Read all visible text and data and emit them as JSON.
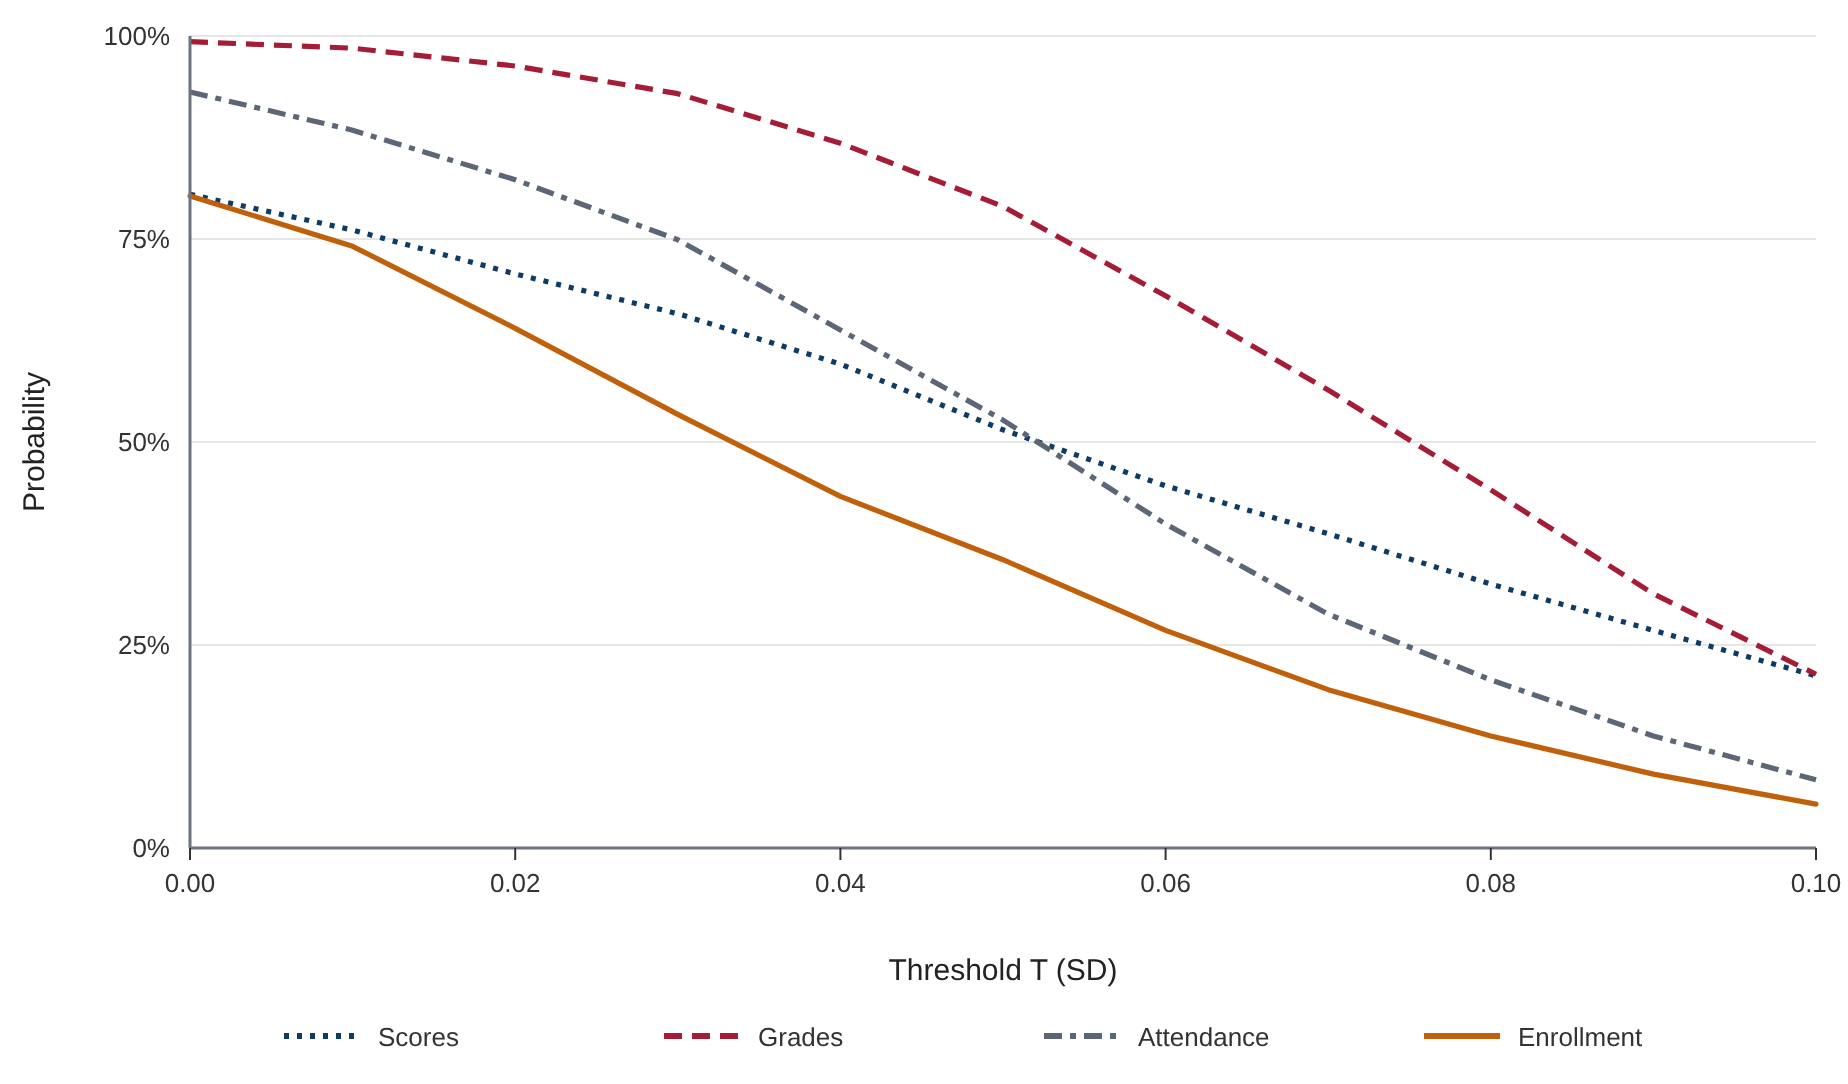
{
  "chart_data": {
    "type": "line",
    "xlabel": "Threshold T (SD)",
    "ylabel": "Probability",
    "x": [
      0,
      0.01,
      0.02,
      0.03,
      0.04,
      0.05,
      0.06,
      0.07,
      0.08,
      0.09,
      0.1
    ],
    "series": [
      {
        "name": "Scores",
        "color": "#0d3b66",
        "line_style": "dotted",
        "values": [
          80.5,
          76.1,
          70.7,
          65.8,
          59.6,
          51.5,
          44.6,
          38.7,
          32.5,
          26.8,
          21.2
        ]
      },
      {
        "name": "Grades",
        "color": "#a51c36",
        "line_style": "dashed",
        "values": [
          99.3,
          98.5,
          96.3,
          92.9,
          86.8,
          79,
          68,
          56.4,
          44.1,
          31.3,
          21.4
        ]
      },
      {
        "name": "Attendance",
        "color": "#5c6677",
        "line_style": "dashdot",
        "values": [
          93.1,
          88.4,
          82.3,
          74.9,
          63.8,
          52.7,
          39.9,
          28.8,
          20.7,
          13.8,
          8.4
        ]
      },
      {
        "name": "Enrollment",
        "color": "#c0600a",
        "line_style": "solid",
        "values": [
          80.3,
          74.1,
          64,
          53.4,
          43.3,
          35.5,
          26.8,
          19.5,
          13.8,
          9.1,
          5.4
        ]
      }
    ],
    "xlim": [
      0,
      0.1
    ],
    "xticks": [
      {
        "value": 0,
        "label": "0.00"
      },
      {
        "value": 0.02,
        "label": "0.02"
      },
      {
        "value": 0.04,
        "label": "0.04"
      },
      {
        "value": 0.06,
        "label": "0.06"
      },
      {
        "value": 0.08,
        "label": "0.08"
      },
      {
        "value": 0.1,
        "label": "0.10"
      }
    ],
    "ylim": [
      0,
      100
    ],
    "yticks": [
      {
        "value": 0,
        "label": "0%"
      },
      {
        "value": 25,
        "label": "25%"
      },
      {
        "value": 50,
        "label": "50%"
      },
      {
        "value": 75,
        "label": "75%"
      },
      {
        "value": 100,
        "label": "100%"
      }
    ],
    "grid": "y",
    "legend": "bottom",
    "marker": "none"
  }
}
